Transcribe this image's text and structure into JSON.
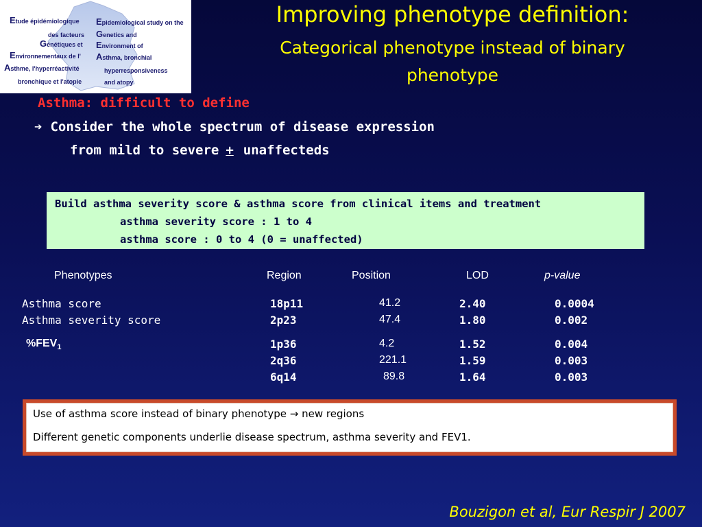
{
  "logo": {
    "lines_fr": [
      {
        "initial": "E",
        "rest": "tude épidémiologique"
      },
      {
        "initial": "",
        "rest": "des facteurs"
      },
      {
        "initial": "G",
        "rest": "énétiques et"
      },
      {
        "initial": "E",
        "rest": "nvironnementaux de l'"
      },
      {
        "initial": "A",
        "rest": "sthme, l'hyperréactivité"
      },
      {
        "initial": "",
        "rest": "bronchique et l'atopie"
      }
    ],
    "lines_en": [
      {
        "initial": "E",
        "rest": "pidemiological study on the"
      },
      {
        "initial": "G",
        "rest": "enetics and"
      },
      {
        "initial": "E",
        "rest": "nvironment of"
      },
      {
        "initial": "A",
        "rest": "sthma, bronchial"
      },
      {
        "initial": "",
        "rest": "hyperresponsiveness"
      },
      {
        "initial": "",
        "rest": "and atopy"
      }
    ]
  },
  "title": {
    "main": "Improving phenotype definition:",
    "subtitle": "Categorical phenotype instead of binary phenotype"
  },
  "section_heading": "Asthma: difficult to define",
  "bullet": {
    "line1": "Consider the whole spectrum of disease expression",
    "line2_start": "from mild to severe",
    "line2_symbol": "+",
    "line2_end": "unaffecteds"
  },
  "info_box": {
    "line1": "Build asthma severity score & asthma score from clinical items and treatment",
    "line2": "asthma severity score : 1 to 4",
    "line3": "asthma score : 0 to 4 (0 = unaffected)"
  },
  "table": {
    "headers": {
      "phenotypes": "Phenotypes",
      "region": "Region",
      "position": "Position",
      "lod": "LOD",
      "pvalue": "p-value"
    },
    "rows": [
      {
        "phenotype": "Asthma score",
        "region": "18p11",
        "position": "41.2",
        "lod": "2.40",
        "pvalue": "0.0004"
      },
      {
        "phenotype": "Asthma severity score",
        "region": "2p23",
        "position": "47.4",
        "lod": "1.80",
        "pvalue": "0.002"
      },
      {
        "phenotype": "%FEV",
        "phenotype_sub": "1",
        "region": "1p36",
        "position": "4.2",
        "lod": "1.52",
        "pvalue": "0.004"
      },
      {
        "phenotype": "",
        "region": "2q36",
        "position": "221.1",
        "lod": "1.59",
        "pvalue": "0.003"
      },
      {
        "phenotype": "",
        "region": "6q14",
        "position": "89.8",
        "lod": "1.64",
        "pvalue": "0.003"
      }
    ]
  },
  "conclusion": {
    "line1": "Use of asthma score instead of binary phenotype → new regions",
    "line2": "Different genetic components underlie disease spectrum, asthma severity and FEV1."
  },
  "citation": "Bouzigon et al, Eur Respir J 2007"
}
